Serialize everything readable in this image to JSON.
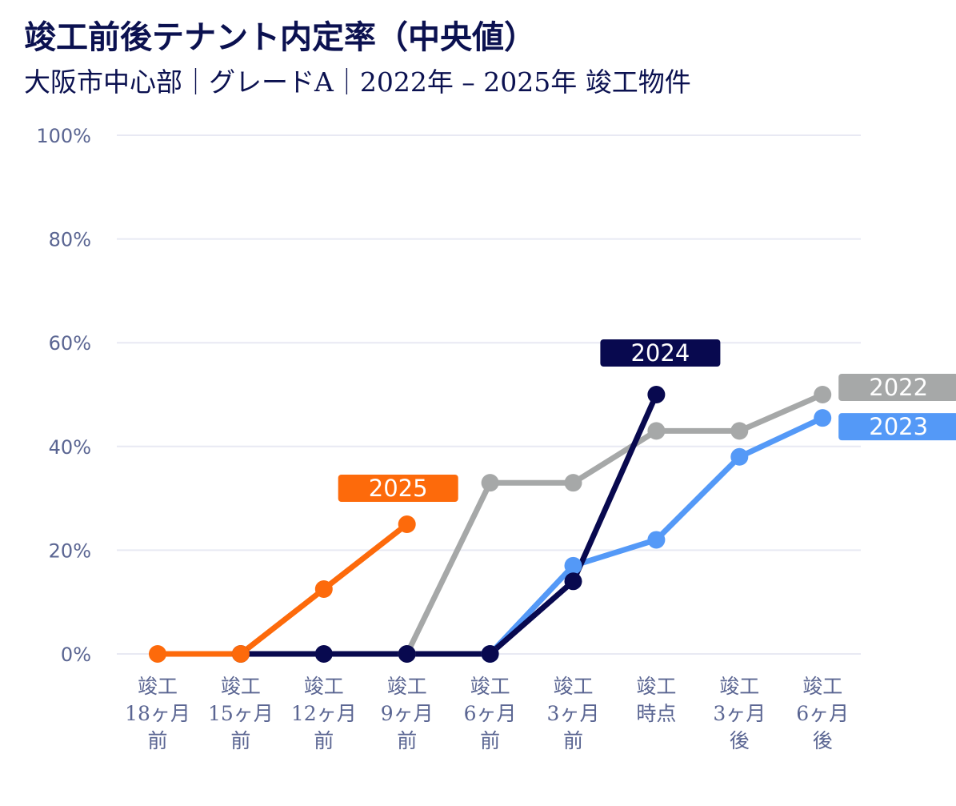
{
  "chart_data": {
    "type": "line",
    "title": "竣工前後テナント内定率（中央値）",
    "subtitle": "大阪市中心部｜グレードA｜2022年 – 2025年 竣工物件",
    "categories": [
      [
        "竣工",
        "18ヶ月",
        "前"
      ],
      [
        "竣工",
        "15ヶ月",
        "前"
      ],
      [
        "竣工",
        "12ヶ月",
        "前"
      ],
      [
        "竣工",
        "9ヶ月",
        "前"
      ],
      [
        "竣工",
        "6ヶ月",
        "前"
      ],
      [
        "竣工",
        "3ヶ月",
        "前"
      ],
      [
        "竣工",
        "時点"
      ],
      [
        "竣工",
        "3ヶ月",
        "後"
      ],
      [
        "竣工",
        "6ヶ月",
        "後"
      ]
    ],
    "y_ticks": [
      "0%",
      "20%",
      "40%",
      "60%",
      "80%",
      "100%"
    ],
    "ylim": [
      0,
      100
    ],
    "grid": true,
    "series": [
      {
        "name": "2022",
        "color": "#a6a8a8",
        "values": [
          null,
          null,
          null,
          0,
          33,
          33,
          43,
          43,
          50
        ]
      },
      {
        "name": "2023",
        "color": "#5499f7",
        "values": [
          null,
          null,
          null,
          null,
          0,
          17,
          22,
          38,
          45.5
        ]
      },
      {
        "name": "2024",
        "color": "#08094f",
        "values": [
          null,
          0,
          0,
          0,
          0,
          14,
          50,
          null,
          null
        ]
      },
      {
        "name": "2025",
        "color": "#fd6a0b",
        "values": [
          0,
          0,
          12.5,
          25,
          null,
          null,
          null,
          null,
          null
        ]
      }
    ]
  }
}
